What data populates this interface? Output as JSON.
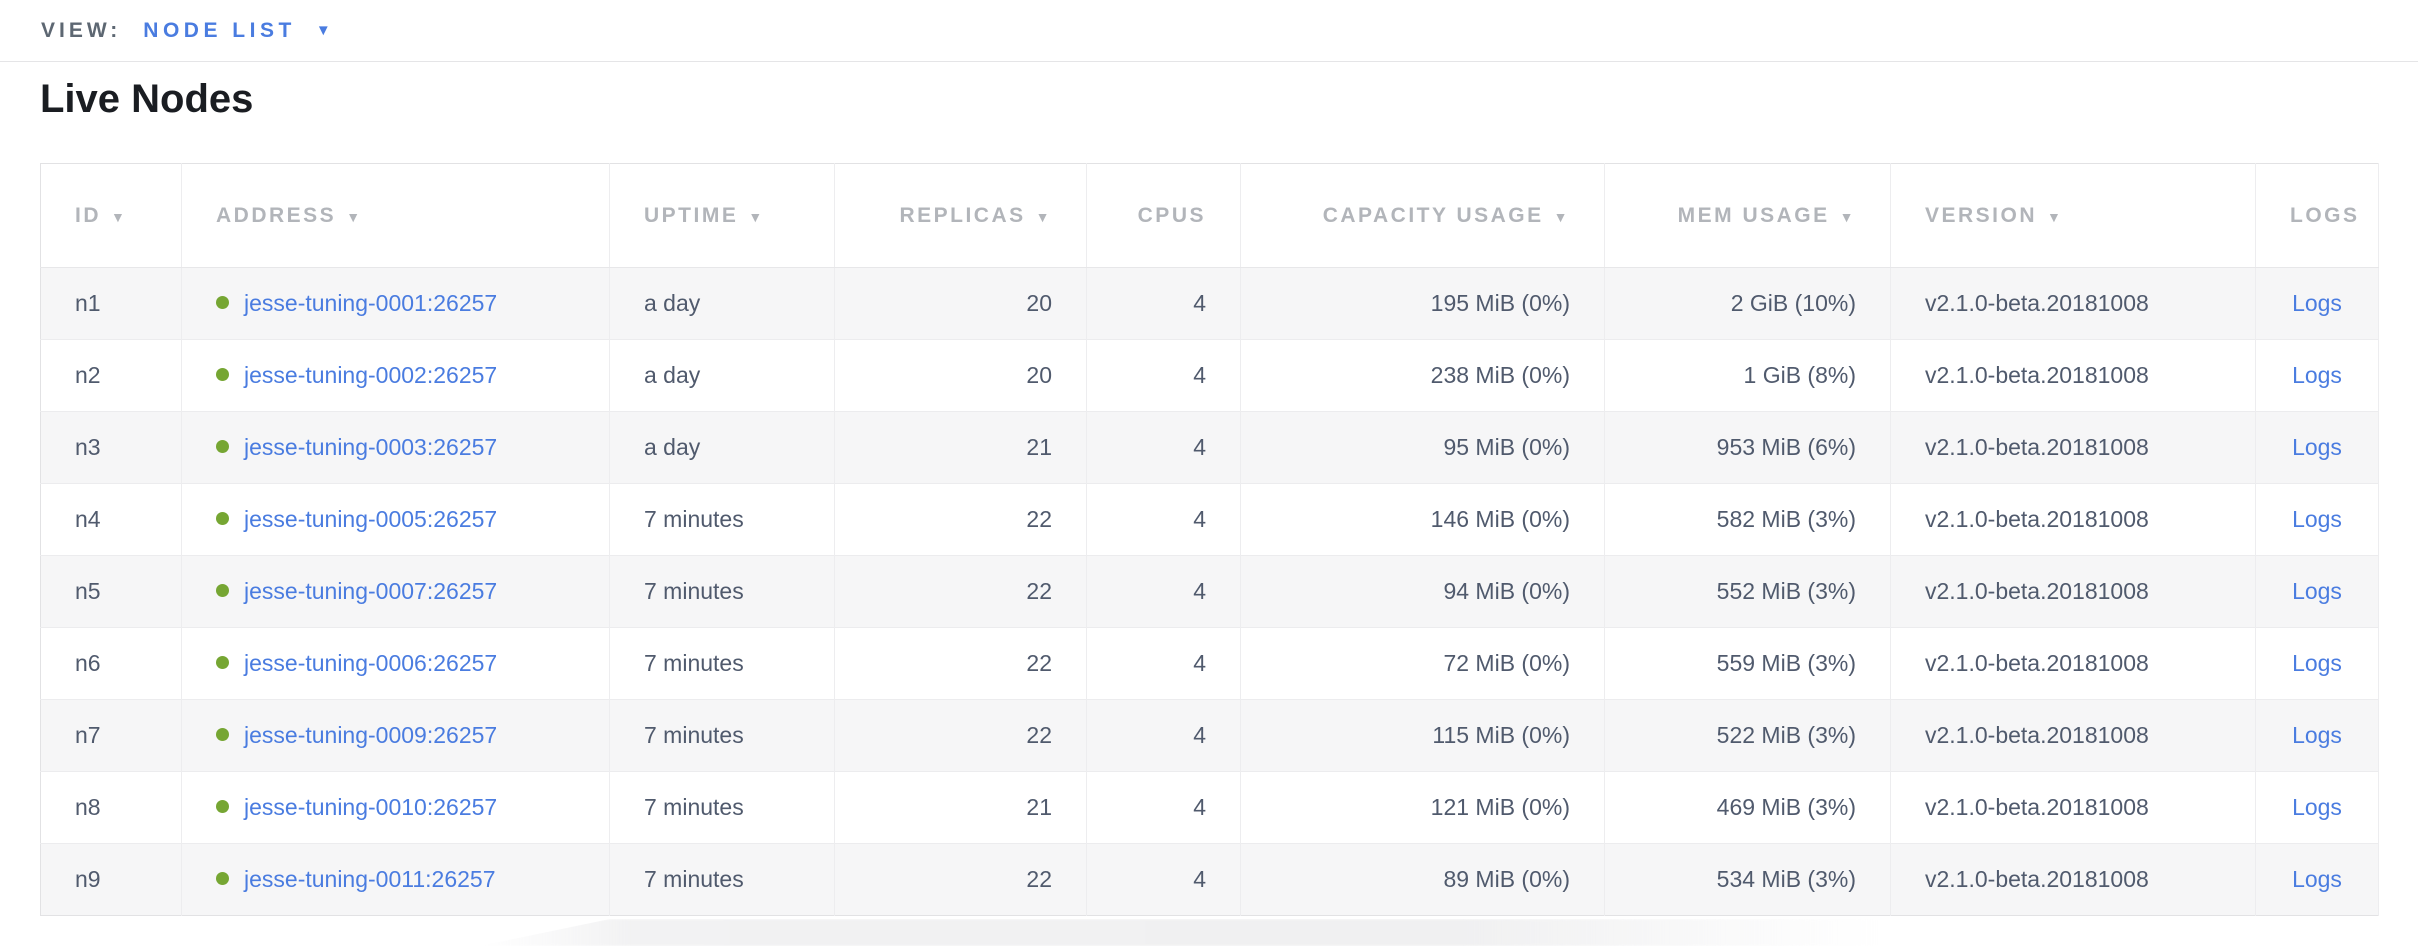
{
  "view_bar": {
    "label": "VIEW:",
    "selected": "NODE LIST"
  },
  "page": {
    "title": "Live Nodes"
  },
  "icons": {
    "sort_desc": "▼",
    "dropdown_caret": "▼"
  },
  "colors": {
    "accent_blue": "#4a7ce0",
    "live_green": "#76a633",
    "header_gray": "#b2b5ba",
    "cell_text": "#505a6d",
    "row_stripe": "#f6f6f7"
  },
  "table": {
    "columns": [
      {
        "key": "id",
        "label": "ID",
        "sorted": true,
        "align": "left"
      },
      {
        "key": "address",
        "label": "ADDRESS",
        "sorted": true,
        "align": "left"
      },
      {
        "key": "uptime",
        "label": "UPTIME",
        "sorted": true,
        "align": "left"
      },
      {
        "key": "replicas",
        "label": "REPLICAS",
        "sorted": true,
        "align": "right"
      },
      {
        "key": "cpus",
        "label": "CPUS",
        "sorted": false,
        "align": "right"
      },
      {
        "key": "capacity",
        "label": "CAPACITY USAGE",
        "sorted": true,
        "align": "right"
      },
      {
        "key": "mem",
        "label": "MEM USAGE",
        "sorted": true,
        "align": "right"
      },
      {
        "key": "version",
        "label": "VERSION",
        "sorted": true,
        "align": "left"
      },
      {
        "key": "logs",
        "label": "LOGS",
        "sorted": false,
        "align": "center"
      }
    ],
    "rows": [
      {
        "id": "n1",
        "address": "jesse-tuning-0001:26257",
        "uptime": "a day",
        "replicas": "20",
        "cpus": "4",
        "capacity": "195 MiB (0%)",
        "mem": "2 GiB (10%)",
        "version": "v2.1.0-beta.20181008",
        "logs": "Logs"
      },
      {
        "id": "n2",
        "address": "jesse-tuning-0002:26257",
        "uptime": "a day",
        "replicas": "20",
        "cpus": "4",
        "capacity": "238 MiB (0%)",
        "mem": "1 GiB (8%)",
        "version": "v2.1.0-beta.20181008",
        "logs": "Logs"
      },
      {
        "id": "n3",
        "address": "jesse-tuning-0003:26257",
        "uptime": "a day",
        "replicas": "21",
        "cpus": "4",
        "capacity": "95 MiB (0%)",
        "mem": "953 MiB (6%)",
        "version": "v2.1.0-beta.20181008",
        "logs": "Logs"
      },
      {
        "id": "n4",
        "address": "jesse-tuning-0005:26257",
        "uptime": "7 minutes",
        "replicas": "22",
        "cpus": "4",
        "capacity": "146 MiB (0%)",
        "mem": "582 MiB (3%)",
        "version": "v2.1.0-beta.20181008",
        "logs": "Logs"
      },
      {
        "id": "n5",
        "address": "jesse-tuning-0007:26257",
        "uptime": "7 minutes",
        "replicas": "22",
        "cpus": "4",
        "capacity": "94 MiB (0%)",
        "mem": "552 MiB (3%)",
        "version": "v2.1.0-beta.20181008",
        "logs": "Logs"
      },
      {
        "id": "n6",
        "address": "jesse-tuning-0006:26257",
        "uptime": "7 minutes",
        "replicas": "22",
        "cpus": "4",
        "capacity": "72 MiB (0%)",
        "mem": "559 MiB (3%)",
        "version": "v2.1.0-beta.20181008",
        "logs": "Logs"
      },
      {
        "id": "n7",
        "address": "jesse-tuning-0009:26257",
        "uptime": "7 minutes",
        "replicas": "22",
        "cpus": "4",
        "capacity": "115 MiB (0%)",
        "mem": "522 MiB (3%)",
        "version": "v2.1.0-beta.20181008",
        "logs": "Logs"
      },
      {
        "id": "n8",
        "address": "jesse-tuning-0010:26257",
        "uptime": "7 minutes",
        "replicas": "21",
        "cpus": "4",
        "capacity": "121 MiB (0%)",
        "mem": "469 MiB (3%)",
        "version": "v2.1.0-beta.20181008",
        "logs": "Logs"
      },
      {
        "id": "n9",
        "address": "jesse-tuning-0011:26257",
        "uptime": "7 minutes",
        "replicas": "22",
        "cpus": "4",
        "capacity": "89 MiB (0%)",
        "mem": "534 MiB (3%)",
        "version": "v2.1.0-beta.20181008",
        "logs": "Logs"
      }
    ]
  }
}
